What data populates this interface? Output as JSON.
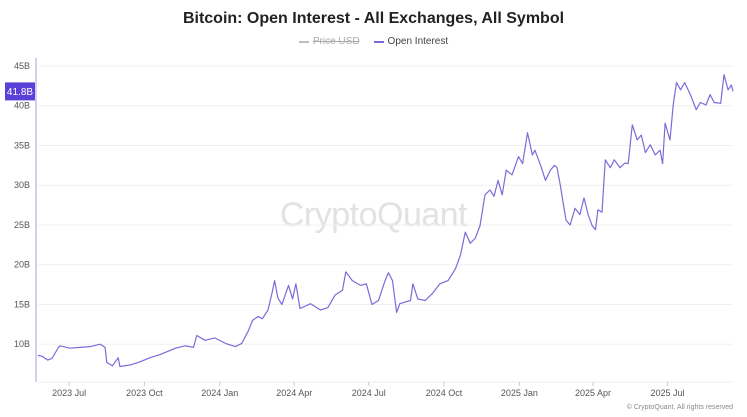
{
  "title": "Bitcoin: Open Interest - All Exchanges, All Symbol",
  "legend": [
    {
      "name": "Price USD",
      "color": "#bbbbbb",
      "enabled": false
    },
    {
      "name": "Open Interest",
      "color": "#7b6bd9",
      "enabled": true
    }
  ],
  "watermark": "CryptoQuant",
  "copyright": "© CryptoQuant. All rights reserved",
  "colors": {
    "series": "#7b6bd9",
    "current_label_bg": "#5b3fd9",
    "grid": "#f0f0f0",
    "axis": "#a99be8"
  },
  "chart_data": {
    "type": "line",
    "title": "Bitcoin: Open Interest - All Exchanges, All Symbol",
    "xlabel": "",
    "ylabel": "",
    "xlim": [
      "2023-05-24",
      "2025-09-19"
    ],
    "ylim": [
      5.25,
      46
    ],
    "grid": true,
    "legend_placement": "top-center",
    "current_value_label": "41.8B",
    "current_value": 41.8,
    "y_ticks": [
      {
        "value": 10,
        "label": "10B"
      },
      {
        "value": 15,
        "label": "15B"
      },
      {
        "value": 20,
        "label": "20B"
      },
      {
        "value": 25,
        "label": "25B"
      },
      {
        "value": 30,
        "label": "30B"
      },
      {
        "value": 35,
        "label": "35B"
      },
      {
        "value": 40,
        "label": "40B"
      },
      {
        "value": 45,
        "label": "45B"
      }
    ],
    "x_ticks": [
      {
        "date": "2023-07-01",
        "label": "2023 Jul"
      },
      {
        "date": "2023-10-01",
        "label": "2023 Oct"
      },
      {
        "date": "2024-01-01",
        "label": "2024 Jan"
      },
      {
        "date": "2024-04-01",
        "label": "2024 Apr"
      },
      {
        "date": "2024-07-01",
        "label": "2024 Jul"
      },
      {
        "date": "2024-10-01",
        "label": "2024 Oct"
      },
      {
        "date": "2025-01-01",
        "label": "2025 Jan"
      },
      {
        "date": "2025-04-01",
        "label": "2025 Apr"
      },
      {
        "date": "2025-07-01",
        "label": "2025 Jul"
      }
    ],
    "series": [
      {
        "name": "Open Interest",
        "unit": "B USD",
        "points": [
          [
            "2023-05-24",
            8.6
          ],
          [
            "2023-05-29",
            8.5
          ],
          [
            "2023-06-05",
            8.0
          ],
          [
            "2023-06-10",
            8.2
          ],
          [
            "2023-06-18",
            9.6
          ],
          [
            "2023-06-20",
            9.8
          ],
          [
            "2023-07-02",
            9.5
          ],
          [
            "2023-07-14",
            9.6
          ],
          [
            "2023-07-27",
            9.7
          ],
          [
            "2023-08-08",
            10.0
          ],
          [
            "2023-08-14",
            9.6
          ],
          [
            "2023-08-16",
            7.7
          ],
          [
            "2023-08-23",
            7.3
          ],
          [
            "2023-08-30",
            8.3
          ],
          [
            "2023-09-01",
            7.2
          ],
          [
            "2023-09-14",
            7.4
          ],
          [
            "2023-09-26",
            7.8
          ],
          [
            "2023-10-08",
            8.3
          ],
          [
            "2023-10-20",
            8.7
          ],
          [
            "2023-11-01",
            9.2
          ],
          [
            "2023-11-08",
            9.5
          ],
          [
            "2023-11-20",
            9.8
          ],
          [
            "2023-11-30",
            9.6
          ],
          [
            "2023-12-04",
            11.1
          ],
          [
            "2023-12-14",
            10.5
          ],
          [
            "2023-12-26",
            10.8
          ],
          [
            "2024-01-08",
            10.1
          ],
          [
            "2024-01-20",
            9.7
          ],
          [
            "2024-01-28",
            10.1
          ],
          [
            "2024-02-05",
            11.7
          ],
          [
            "2024-02-10",
            13.0
          ],
          [
            "2024-02-17",
            13.5
          ],
          [
            "2024-02-22",
            13.2
          ],
          [
            "2024-02-29",
            14.3
          ],
          [
            "2024-03-05",
            16.5
          ],
          [
            "2024-03-08",
            18.0
          ],
          [
            "2024-03-12",
            15.8
          ],
          [
            "2024-03-17",
            15.0
          ],
          [
            "2024-03-25",
            17.4
          ],
          [
            "2024-03-30",
            15.7
          ],
          [
            "2024-04-03",
            17.6
          ],
          [
            "2024-04-08",
            14.5
          ],
          [
            "2024-04-21",
            15.1
          ],
          [
            "2024-05-03",
            14.3
          ],
          [
            "2024-05-12",
            14.6
          ],
          [
            "2024-05-21",
            16.2
          ],
          [
            "2024-05-30",
            16.8
          ],
          [
            "2024-06-03",
            19.1
          ],
          [
            "2024-06-11",
            18.0
          ],
          [
            "2024-06-21",
            17.4
          ],
          [
            "2024-06-28",
            17.6
          ],
          [
            "2024-07-05",
            15.0
          ],
          [
            "2024-07-13",
            15.5
          ],
          [
            "2024-07-21",
            18.0
          ],
          [
            "2024-07-25",
            19.0
          ],
          [
            "2024-07-30",
            18.0
          ],
          [
            "2024-08-04",
            14.0
          ],
          [
            "2024-08-08",
            15.1
          ],
          [
            "2024-08-21",
            15.5
          ],
          [
            "2024-08-24",
            17.6
          ],
          [
            "2024-08-30",
            15.7
          ],
          [
            "2024-09-08",
            15.5
          ],
          [
            "2024-09-17",
            16.4
          ],
          [
            "2024-09-26",
            17.6
          ],
          [
            "2024-10-06",
            18.0
          ],
          [
            "2024-10-15",
            19.5
          ],
          [
            "2024-10-21",
            21.2
          ],
          [
            "2024-10-27",
            24.1
          ],
          [
            "2024-11-02",
            22.7
          ],
          [
            "2024-11-08",
            23.3
          ],
          [
            "2024-11-14",
            24.9
          ],
          [
            "2024-11-20",
            28.8
          ],
          [
            "2024-11-26",
            29.4
          ],
          [
            "2024-12-01",
            28.6
          ],
          [
            "2024-12-06",
            30.6
          ],
          [
            "2024-12-11",
            28.8
          ],
          [
            "2024-12-16",
            31.9
          ],
          [
            "2024-12-23",
            31.3
          ],
          [
            "2024-12-31",
            33.6
          ],
          [
            "2025-01-05",
            32.7
          ],
          [
            "2025-01-11",
            36.6
          ],
          [
            "2025-01-17",
            33.8
          ],
          [
            "2025-01-20",
            34.4
          ],
          [
            "2025-01-27",
            32.5
          ],
          [
            "2025-02-02",
            30.6
          ],
          [
            "2025-02-08",
            31.9
          ],
          [
            "2025-02-13",
            32.5
          ],
          [
            "2025-02-16",
            32.2
          ],
          [
            "2025-02-20",
            30.0
          ],
          [
            "2025-02-27",
            25.6
          ],
          [
            "2025-03-04",
            25.0
          ],
          [
            "2025-03-10",
            27.1
          ],
          [
            "2025-03-16",
            26.3
          ],
          [
            "2025-03-21",
            28.4
          ],
          [
            "2025-03-26",
            26.3
          ],
          [
            "2025-03-31",
            24.9
          ],
          [
            "2025-04-04",
            24.4
          ],
          [
            "2025-04-07",
            26.9
          ],
          [
            "2025-04-12",
            26.6
          ],
          [
            "2025-04-16",
            33.2
          ],
          [
            "2025-04-22",
            32.2
          ],
          [
            "2025-04-27",
            33.2
          ],
          [
            "2025-05-04",
            32.2
          ],
          [
            "2025-05-10",
            32.8
          ],
          [
            "2025-05-14",
            32.7
          ],
          [
            "2025-05-19",
            37.6
          ],
          [
            "2025-05-25",
            35.7
          ],
          [
            "2025-05-30",
            36.3
          ],
          [
            "2025-06-04",
            34.1
          ],
          [
            "2025-06-10",
            35.1
          ],
          [
            "2025-06-16",
            33.8
          ],
          [
            "2025-06-22",
            34.4
          ],
          [
            "2025-06-25",
            32.7
          ],
          [
            "2025-06-28",
            37.8
          ],
          [
            "2025-07-04",
            35.7
          ],
          [
            "2025-07-08",
            40.1
          ],
          [
            "2025-07-12",
            42.9
          ],
          [
            "2025-07-17",
            42.0
          ],
          [
            "2025-07-22",
            42.9
          ],
          [
            "2025-07-29",
            41.4
          ],
          [
            "2025-08-05",
            39.5
          ],
          [
            "2025-08-10",
            40.4
          ],
          [
            "2025-08-17",
            40.1
          ],
          [
            "2025-08-22",
            41.4
          ],
          [
            "2025-08-27",
            40.4
          ],
          [
            "2025-09-04",
            40.3
          ],
          [
            "2025-09-08",
            43.9
          ],
          [
            "2025-09-13",
            42.0
          ],
          [
            "2025-09-17",
            42.6
          ],
          [
            "2025-09-19",
            41.8
          ]
        ]
      }
    ]
  }
}
